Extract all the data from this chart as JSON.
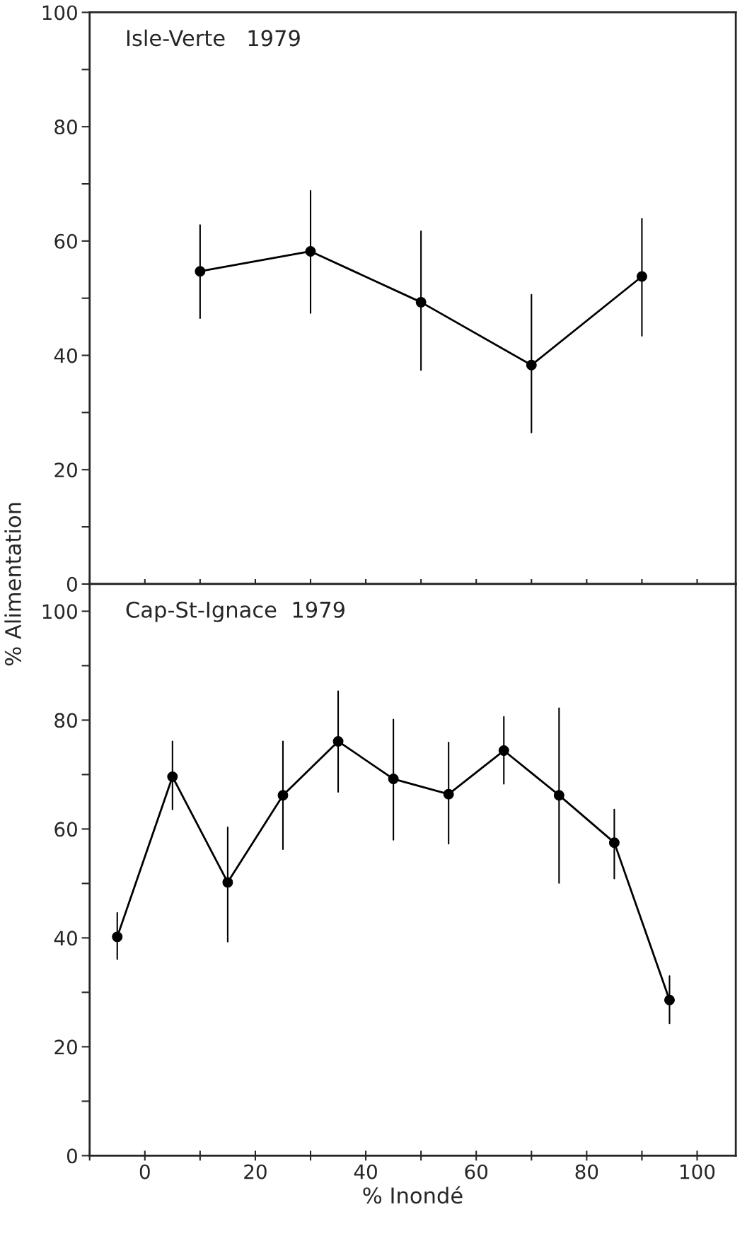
{
  "chart_data": [
    {
      "type": "line",
      "title": "Isle-Verte   1979",
      "ylabel": "% Alimentation",
      "x": [
        10,
        30,
        50,
        70,
        90
      ],
      "series": [
        {
          "color": "#000000",
          "values": [
            54.7,
            58.2,
            49.3,
            38.3,
            53.8
          ],
          "errors": [
            [
              46.5,
              62.8
            ],
            [
              47.4,
              68.8
            ],
            [
              37.4,
              61.7
            ],
            [
              26.5,
              50.6
            ],
            [
              43.4,
              63.9
            ]
          ]
        }
      ],
      "xlim": [
        -10,
        107
      ],
      "xticks": [
        {
          "value": -10,
          "label": null
        },
        {
          "value": 0,
          "label": null
        },
        {
          "value": 10,
          "label": null
        },
        {
          "value": 20,
          "label": null
        },
        {
          "value": 30,
          "label": null
        },
        {
          "value": 40,
          "label": null
        },
        {
          "value": 50,
          "label": null
        },
        {
          "value": 60,
          "label": null
        },
        {
          "value": 70,
          "label": null
        },
        {
          "value": 80,
          "label": null
        },
        {
          "value": 90,
          "label": null
        },
        {
          "value": 100,
          "label": null
        }
      ],
      "ylim": [
        0,
        100
      ],
      "yticks": [
        0,
        {
          "value": 10,
          "label": null
        },
        20,
        {
          "value": 30,
          "label": null
        },
        40,
        {
          "value": 50,
          "label": null
        },
        60,
        {
          "value": 70,
          "label": null
        },
        80,
        {
          "value": 90,
          "label": null
        },
        100
      ],
      "tick_labels": "y",
      "marker": "circle",
      "line_style": "solid",
      "grid": false
    },
    {
      "type": "line",
      "title": "Cap-St-Ignace  1979",
      "xlabel": "% Inondé",
      "x": [
        -5,
        5,
        15,
        25,
        35,
        45,
        55,
        65,
        75,
        85,
        95
      ],
      "series": [
        {
          "color": "#000000",
          "values": [
            40.2,
            69.6,
            50.2,
            66.2,
            76.1,
            69.2,
            66.4,
            74.4,
            66.2,
            57.5,
            28.6
          ],
          "errors": [
            [
              36.1,
              44.6
            ],
            [
              63.6,
              76.1
            ],
            [
              39.3,
              60.3
            ],
            [
              56.3,
              76.1
            ],
            [
              66.8,
              85.3
            ],
            [
              58.0,
              80.1
            ],
            [
              57.3,
              75.9
            ],
            [
              68.3,
              80.6
            ],
            [
              50.1,
              82.2
            ],
            [
              50.9,
              63.6
            ],
            [
              24.3,
              33.0
            ]
          ]
        }
      ],
      "xlim": [
        -10,
        107
      ],
      "xticks": [
        {
          "value": -10,
          "label": null
        },
        0,
        {
          "value": 10,
          "label": null
        },
        20,
        {
          "value": 30,
          "label": null
        },
        40,
        {
          "value": 50,
          "label": null
        },
        60,
        {
          "value": 70,
          "label": null
        },
        80,
        {
          "value": 90,
          "label": null
        },
        100
      ],
      "ylim": [
        0,
        105
      ],
      "yticks": [
        0,
        {
          "value": 10,
          "label": null
        },
        20,
        {
          "value": 30,
          "label": null
        },
        40,
        {
          "value": 50,
          "label": null
        },
        60,
        {
          "value": 70,
          "label": null
        },
        80,
        {
          "value": 90,
          "label": null
        },
        100
      ],
      "marker": "circle",
      "line_style": "solid",
      "grid": false
    }
  ]
}
